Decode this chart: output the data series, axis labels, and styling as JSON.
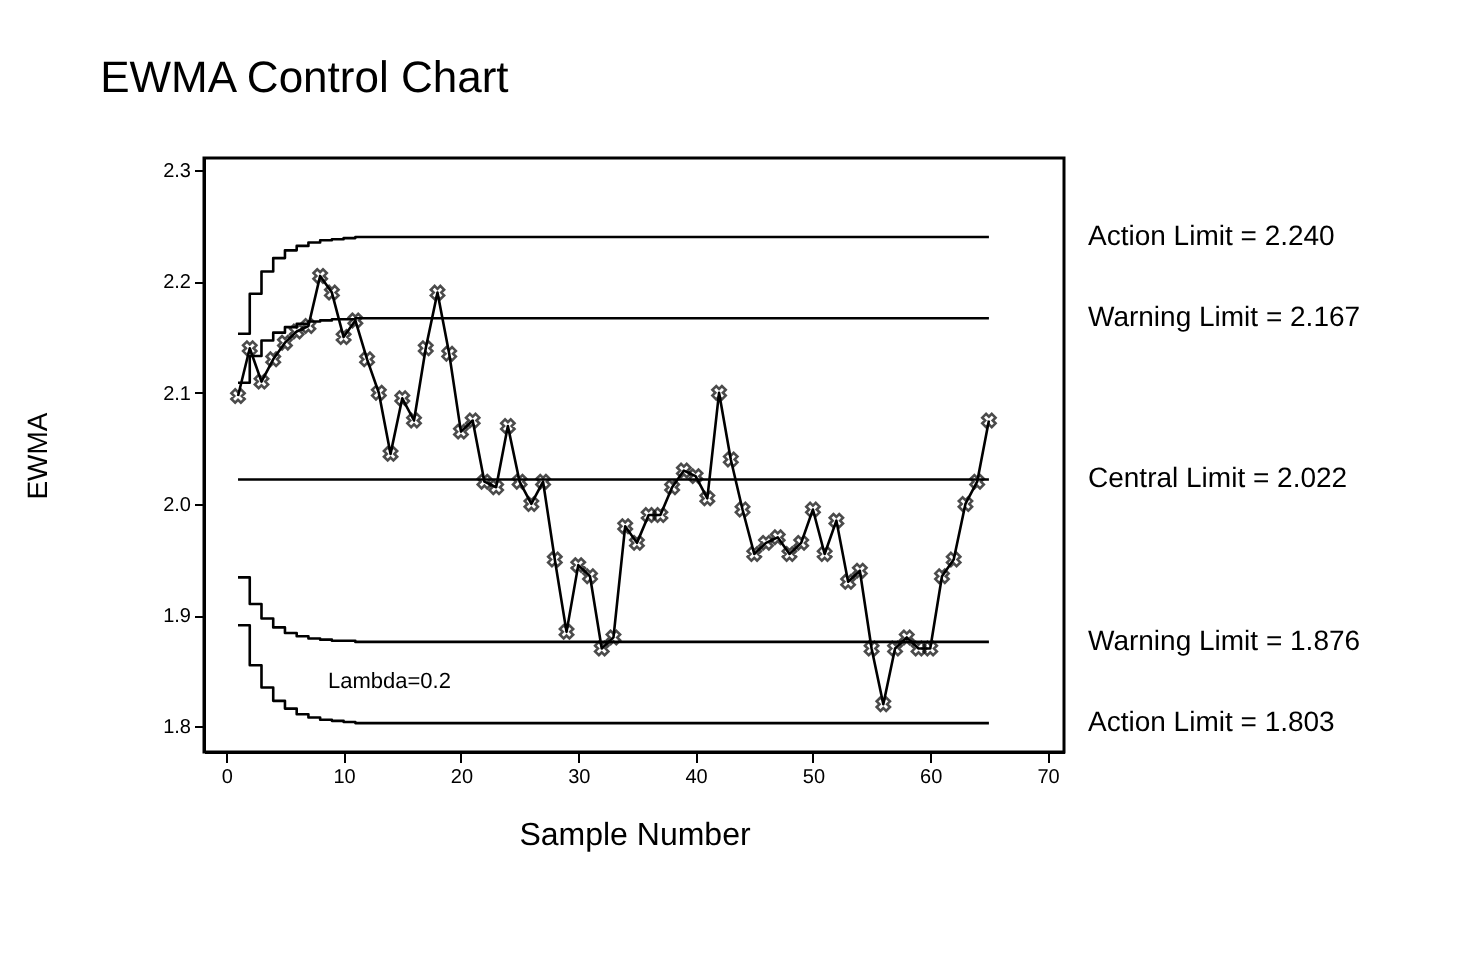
{
  "chart_data": {
    "type": "line",
    "title": "EWMA Control Chart",
    "xlabel": "Sample Number",
    "ylabel": "EWMA",
    "x": [
      1,
      2,
      3,
      4,
      5,
      6,
      7,
      8,
      9,
      10,
      11,
      12,
      13,
      14,
      15,
      16,
      17,
      18,
      19,
      20,
      21,
      22,
      23,
      24,
      25,
      26,
      27,
      28,
      29,
      30,
      31,
      32,
      33,
      34,
      35,
      36,
      37,
      38,
      39,
      40,
      41,
      42,
      43,
      44,
      45,
      46,
      47,
      48,
      49,
      50,
      51,
      52,
      53,
      54,
      55,
      56,
      57,
      58,
      59,
      60,
      61,
      62,
      63,
      64,
      65
    ],
    "series": [
      {
        "color": "#000000",
        "marker": "cross",
        "values": [
          2.097,
          2.14,
          2.11,
          2.13,
          2.145,
          2.155,
          2.16,
          2.205,
          2.19,
          2.15,
          2.165,
          2.13,
          2.1,
          2.045,
          2.095,
          2.075,
          2.14,
          2.19,
          2.135,
          2.065,
          2.075,
          2.02,
          2.015,
          2.07,
          2.02,
          2.0,
          2.02,
          1.95,
          1.885,
          1.945,
          1.935,
          1.87,
          1.88,
          1.98,
          1.965,
          1.99,
          1.99,
          2.015,
          2.03,
          2.025,
          2.005,
          2.1,
          2.04,
          1.995,
          1.955,
          1.965,
          1.97,
          1.955,
          1.965,
          1.995,
          1.955,
          1.985,
          1.93,
          1.94,
          1.87,
          1.82,
          1.87,
          1.88,
          1.87,
          1.87,
          1.935,
          1.95,
          2.0,
          2.02,
          2.075
        ]
      },
      {
        "name": "Action Limit = 2.240",
        "type": "step",
        "color": "#000000",
        "marker": "none",
        "x": [
          1,
          2,
          3,
          4,
          5,
          6,
          7,
          8,
          9,
          10,
          11,
          65
        ],
        "values": [
          2.153,
          2.189,
          2.209,
          2.221,
          2.228,
          2.232,
          2.235,
          2.237,
          2.238,
          2.239,
          2.24,
          2.24
        ]
      },
      {
        "name": "Warning Limit = 2.167",
        "type": "step",
        "color": "#000000",
        "marker": "none",
        "x": [
          1,
          2,
          3,
          4,
          5,
          6,
          7,
          8,
          9,
          10,
          11,
          65
        ],
        "values": [
          2.109,
          2.133,
          2.147,
          2.154,
          2.159,
          2.162,
          2.164,
          2.165,
          2.166,
          2.166,
          2.167,
          2.167
        ]
      },
      {
        "name": "Central Limit = 2.022",
        "type": "line",
        "color": "#000000",
        "marker": "none",
        "x": [
          1,
          65
        ],
        "values": [
          2.022,
          2.022
        ]
      },
      {
        "name": "Warning Limit = 1.876",
        "type": "step",
        "color": "#000000",
        "marker": "none",
        "x": [
          1,
          2,
          3,
          4,
          5,
          6,
          7,
          8,
          9,
          10,
          11,
          65
        ],
        "values": [
          1.934,
          1.91,
          1.897,
          1.889,
          1.884,
          1.881,
          1.879,
          1.878,
          1.877,
          1.877,
          1.876,
          1.876
        ]
      },
      {
        "name": "Action Limit = 1.803",
        "type": "step",
        "color": "#000000",
        "marker": "none",
        "x": [
          1,
          2,
          3,
          4,
          5,
          6,
          7,
          8,
          9,
          10,
          11,
          65
        ],
        "values": [
          1.891,
          1.855,
          1.835,
          1.823,
          1.816,
          1.811,
          1.808,
          1.806,
          1.805,
          1.804,
          1.803,
          1.803
        ]
      }
    ],
    "xlim": [
      -1.9,
      71.4
    ],
    "xticks": [
      0,
      10,
      20,
      30,
      40,
      50,
      60,
      70
    ],
    "ylim": [
      1.777,
      2.311
    ],
    "yticks": [
      1.8,
      1.9,
      {
        "value": 2.0,
        "label": "2.0"
      },
      2.1,
      2.2,
      2.3
    ],
    "annotations": [
      "Lambda=0.2"
    ],
    "grid": false,
    "line_style": "solid"
  }
}
